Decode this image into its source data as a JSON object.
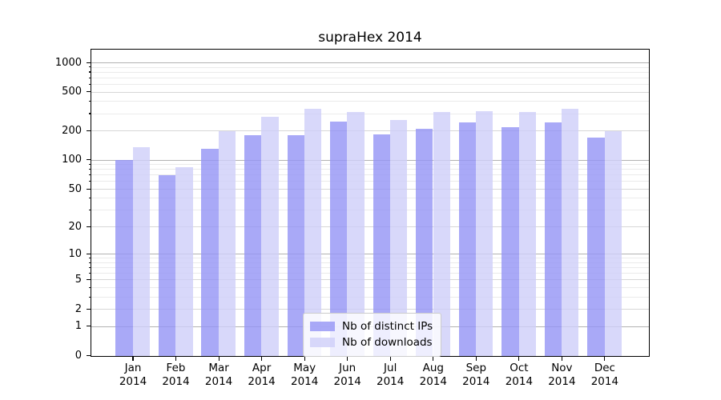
{
  "title": "supraHex 2014",
  "colors": {
    "background": "#ffffff",
    "spine": "#000000",
    "grid_major": "#b2b2b2",
    "grid_mid": "#d6d6d6",
    "grid_minor": "#ebebeb",
    "bar_distinct_ips": "rgba(148,148,245,0.8)",
    "bar_downloads": "rgba(206,206,249,0.8)",
    "legend_border": "#cccccc"
  },
  "chart_data": {
    "type": "bar",
    "title": "supraHex 2014",
    "categories": [
      "Jan",
      "Feb",
      "Mar",
      "Apr",
      "May",
      "Jun",
      "Jul",
      "Aug",
      "Sep",
      "Oct",
      "Nov",
      "Dec"
    ],
    "x_sublabel": "2014",
    "series": [
      {
        "name": "Nb of distinct IPs",
        "color": "rgba(148,148,245,0.8)",
        "values": [
          100,
          70,
          130,
          180,
          180,
          250,
          185,
          210,
          245,
          220,
          247,
          170
        ]
      },
      {
        "name": "Nb of downloads",
        "color": "rgba(206,206,249,0.8)",
        "values": [
          135,
          85,
          200,
          278,
          335,
          315,
          260,
          315,
          320,
          315,
          340,
          200
        ]
      }
    ],
    "yscale": "log1p",
    "yticks": [
      0,
      1,
      2,
      5,
      10,
      20,
      50,
      100,
      200,
      500,
      1000
    ],
    "ylim": [
      0,
      1350
    ],
    "grid": "horizontal",
    "legend_position": "lower center"
  }
}
